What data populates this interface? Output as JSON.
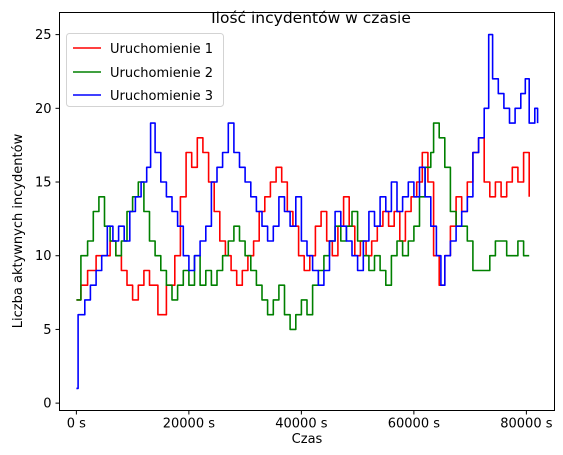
{
  "chart_data": {
    "type": "line",
    "title": "Ilość incydentów w czasie",
    "xlabel": "Czas",
    "ylabel": "Liczba aktywnych incydentów",
    "xlim": [
      -3000,
      85000
    ],
    "ylim": [
      -0.5,
      26.5
    ],
    "x_ticks": [
      0,
      20000,
      40000,
      60000,
      80000
    ],
    "x_tick_labels": [
      "0 s",
      "20000 s",
      "40000 s",
      "60000 s",
      "80000 s"
    ],
    "y_ticks": [
      0,
      5,
      10,
      15,
      20,
      25
    ],
    "y_tick_labels": [
      "0",
      "5",
      "10",
      "15",
      "20",
      "25"
    ],
    "grid": false,
    "legend_position": "top-left",
    "series": [
      {
        "name": "Uruchomienie 1",
        "color": "#ff0000",
        "points": [
          [
            0,
            7
          ],
          [
            800,
            8
          ],
          [
            2000,
            9
          ],
          [
            3500,
            10
          ],
          [
            5000,
            10
          ],
          [
            6000,
            11
          ],
          [
            7000,
            10
          ],
          [
            8000,
            9
          ],
          [
            9000,
            8
          ],
          [
            10000,
            7
          ],
          [
            11000,
            8
          ],
          [
            12000,
            9
          ],
          [
            13000,
            8
          ],
          [
            14500,
            6
          ],
          [
            16000,
            8
          ],
          [
            17500,
            10
          ],
          [
            18500,
            14
          ],
          [
            19500,
            17
          ],
          [
            20500,
            16
          ],
          [
            21500,
            18
          ],
          [
            22500,
            17
          ],
          [
            23500,
            15
          ],
          [
            24500,
            13
          ],
          [
            25500,
            11
          ],
          [
            26500,
            10
          ],
          [
            27500,
            9
          ],
          [
            28500,
            8
          ],
          [
            29500,
            9
          ],
          [
            30500,
            10
          ],
          [
            31500,
            11
          ],
          [
            32500,
            13
          ],
          [
            33500,
            14
          ],
          [
            34500,
            15
          ],
          [
            35500,
            16
          ],
          [
            36500,
            15
          ],
          [
            37500,
            13
          ],
          [
            38500,
            12
          ],
          [
            39500,
            10
          ],
          [
            40500,
            9
          ],
          [
            41500,
            10
          ],
          [
            42500,
            12
          ],
          [
            43500,
            13
          ],
          [
            44500,
            11
          ],
          [
            45500,
            10
          ],
          [
            46500,
            12
          ],
          [
            47500,
            14
          ],
          [
            48500,
            12
          ],
          [
            49500,
            10
          ],
          [
            50500,
            11
          ],
          [
            51500,
            10
          ],
          [
            52500,
            11
          ],
          [
            53500,
            12
          ],
          [
            54500,
            13
          ],
          [
            55500,
            12
          ],
          [
            56500,
            13
          ],
          [
            57500,
            11
          ],
          [
            58500,
            13
          ],
          [
            59500,
            14
          ],
          [
            60500,
            15
          ],
          [
            61500,
            17
          ],
          [
            62500,
            15
          ],
          [
            63500,
            10
          ],
          [
            64500,
            8
          ],
          [
            65500,
            10
          ],
          [
            66500,
            12
          ],
          [
            67500,
            14
          ],
          [
            68500,
            13
          ],
          [
            69500,
            15
          ],
          [
            70500,
            17
          ],
          [
            71500,
            18
          ],
          [
            72500,
            15
          ],
          [
            73500,
            14
          ],
          [
            74500,
            15
          ],
          [
            75500,
            14
          ],
          [
            76500,
            15
          ],
          [
            77500,
            16
          ],
          [
            78500,
            15
          ],
          [
            79500,
            17
          ],
          [
            80500,
            14
          ]
        ]
      },
      {
        "name": "Uruchomienie 2",
        "color": "#008000",
        "points": [
          [
            0,
            7
          ],
          [
            800,
            10
          ],
          [
            2000,
            11
          ],
          [
            3000,
            13
          ],
          [
            4000,
            14
          ],
          [
            5000,
            12
          ],
          [
            6000,
            11
          ],
          [
            7000,
            10
          ],
          [
            8000,
            11
          ],
          [
            9000,
            13
          ],
          [
            10000,
            14
          ],
          [
            11000,
            15
          ],
          [
            12000,
            13
          ],
          [
            13000,
            11
          ],
          [
            14000,
            10
          ],
          [
            15000,
            9
          ],
          [
            16000,
            8
          ],
          [
            17000,
            7
          ],
          [
            18000,
            8
          ],
          [
            19000,
            9
          ],
          [
            20000,
            8
          ],
          [
            21000,
            10
          ],
          [
            22000,
            8
          ],
          [
            23000,
            9
          ],
          [
            24000,
            8
          ],
          [
            25000,
            9
          ],
          [
            26000,
            10
          ],
          [
            27000,
            11
          ],
          [
            28000,
            12
          ],
          [
            29000,
            11
          ],
          [
            30000,
            10
          ],
          [
            31000,
            9
          ],
          [
            32000,
            8
          ],
          [
            33000,
            7
          ],
          [
            34000,
            6
          ],
          [
            35000,
            7
          ],
          [
            36000,
            8
          ],
          [
            37000,
            6
          ],
          [
            38000,
            5
          ],
          [
            39000,
            6
          ],
          [
            40000,
            7
          ],
          [
            41000,
            6
          ],
          [
            42000,
            8
          ],
          [
            43000,
            9
          ],
          [
            44000,
            10
          ],
          [
            45000,
            11
          ],
          [
            46000,
            12
          ],
          [
            47000,
            11
          ],
          [
            48000,
            12
          ],
          [
            49000,
            13
          ],
          [
            50000,
            11
          ],
          [
            51000,
            10
          ],
          [
            52000,
            9
          ],
          [
            53000,
            10
          ],
          [
            54000,
            9
          ],
          [
            55000,
            8
          ],
          [
            56000,
            10
          ],
          [
            57000,
            11
          ],
          [
            58000,
            10
          ],
          [
            59000,
            11
          ],
          [
            60000,
            12
          ],
          [
            61000,
            14
          ],
          [
            62000,
            16
          ],
          [
            63000,
            17
          ],
          [
            63500,
            19
          ],
          [
            64500,
            18
          ],
          [
            65500,
            16
          ],
          [
            66500,
            13
          ],
          [
            67500,
            12
          ],
          [
            68500,
            12
          ],
          [
            69500,
            11
          ],
          [
            70500,
            9
          ],
          [
            71500,
            9
          ],
          [
            72500,
            9
          ],
          [
            73500,
            10
          ],
          [
            74500,
            11
          ],
          [
            75500,
            11
          ],
          [
            76500,
            10
          ],
          [
            77500,
            10
          ],
          [
            78500,
            11
          ],
          [
            79500,
            10
          ],
          [
            80500,
            10
          ]
        ]
      },
      {
        "name": "Uruchomienie 3",
        "color": "#0000ff",
        "points": [
          [
            0,
            1
          ],
          [
            300,
            6
          ],
          [
            1500,
            7
          ],
          [
            2500,
            8
          ],
          [
            3500,
            9
          ],
          [
            4500,
            10
          ],
          [
            5500,
            12
          ],
          [
            6500,
            11
          ],
          [
            7500,
            12
          ],
          [
            8500,
            11
          ],
          [
            9500,
            13
          ],
          [
            10500,
            14
          ],
          [
            11500,
            15
          ],
          [
            12500,
            16
          ],
          [
            13200,
            19
          ],
          [
            14000,
            17
          ],
          [
            15000,
            15
          ],
          [
            16000,
            14
          ],
          [
            17000,
            13
          ],
          [
            18000,
            12
          ],
          [
            19000,
            10
          ],
          [
            20000,
            9
          ],
          [
            21000,
            10
          ],
          [
            22000,
            11
          ],
          [
            23000,
            12
          ],
          [
            24000,
            15
          ],
          [
            25000,
            16
          ],
          [
            26000,
            17
          ],
          [
            27000,
            19
          ],
          [
            28000,
            17
          ],
          [
            29000,
            16
          ],
          [
            30000,
            15
          ],
          [
            31000,
            14
          ],
          [
            32000,
            13
          ],
          [
            33000,
            12
          ],
          [
            34000,
            11
          ],
          [
            35000,
            12
          ],
          [
            36000,
            14
          ],
          [
            37000,
            13
          ],
          [
            38000,
            12
          ],
          [
            39000,
            14
          ],
          [
            40000,
            11
          ],
          [
            41000,
            10
          ],
          [
            42000,
            9
          ],
          [
            43000,
            8
          ],
          [
            44000,
            9
          ],
          [
            45000,
            11
          ],
          [
            46000,
            13
          ],
          [
            47000,
            12
          ],
          [
            48000,
            11
          ],
          [
            49000,
            10
          ],
          [
            50000,
            9
          ],
          [
            51000,
            11
          ],
          [
            52000,
            13
          ],
          [
            53000,
            12
          ],
          [
            54000,
            14
          ],
          [
            55000,
            13
          ],
          [
            56000,
            15
          ],
          [
            57000,
            13
          ],
          [
            58000,
            14
          ],
          [
            59000,
            15
          ],
          [
            60000,
            14
          ],
          [
            61000,
            16
          ],
          [
            62000,
            14
          ],
          [
            63000,
            12
          ],
          [
            64000,
            10
          ],
          [
            64800,
            8
          ],
          [
            65500,
            10
          ],
          [
            66500,
            11
          ],
          [
            67500,
            12
          ],
          [
            68500,
            13
          ],
          [
            69500,
            14
          ],
          [
            70500,
            17
          ],
          [
            71500,
            18
          ],
          [
            72500,
            20
          ],
          [
            73300,
            25
          ],
          [
            74000,
            22
          ],
          [
            75000,
            21
          ],
          [
            76000,
            20
          ],
          [
            77000,
            19
          ],
          [
            78000,
            20
          ],
          [
            79000,
            21
          ],
          [
            79800,
            22
          ],
          [
            80500,
            19
          ],
          [
            81500,
            20
          ],
          [
            82000,
            19
          ]
        ]
      }
    ]
  }
}
